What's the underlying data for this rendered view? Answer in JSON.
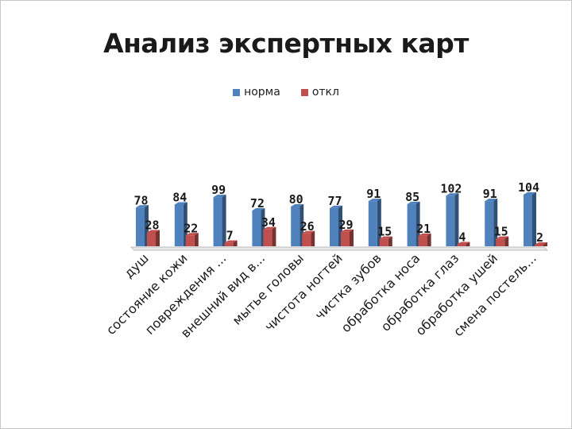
{
  "chart_data": {
    "type": "bar",
    "title": "Анализ экспертных карт",
    "categories": [
      "душ",
      "состояние кожи",
      "повреждения ...",
      "внешний вид в...",
      "мытье головы",
      "чистота ногтей",
      "чистка зубов",
      "обработка носа",
      "обработка глаз",
      "обработка ушей",
      "смена постель..."
    ],
    "series": [
      {
        "name": "норма",
        "color": "#4f81bd",
        "values": [
          78,
          84,
          99,
          72,
          80,
          77,
          91,
          85,
          102,
          91,
          104
        ]
      },
      {
        "name": "откл",
        "color": "#c0504d",
        "values": [
          28,
          22,
          7,
          34,
          26,
          29,
          15,
          21,
          4,
          15,
          2
        ]
      }
    ],
    "ylim": [
      0,
      110
    ],
    "grid": false,
    "legend": "top"
  }
}
